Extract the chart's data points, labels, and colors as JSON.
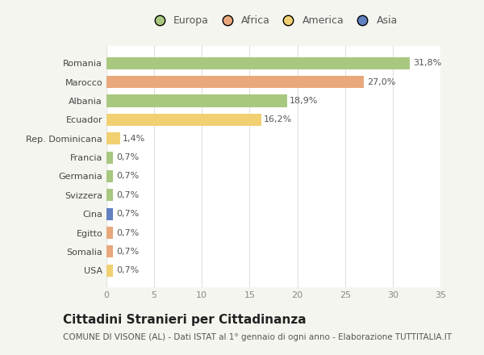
{
  "countries": [
    "Romania",
    "Marocco",
    "Albania",
    "Ecuador",
    "Rep. Dominicana",
    "Francia",
    "Germania",
    "Svizzera",
    "Cina",
    "Egitto",
    "Somalia",
    "USA"
  ],
  "values": [
    31.8,
    27.0,
    18.9,
    16.2,
    1.4,
    0.7,
    0.7,
    0.7,
    0.7,
    0.7,
    0.7,
    0.7
  ],
  "labels": [
    "31,8%",
    "27,0%",
    "18,9%",
    "16,2%",
    "1,4%",
    "0,7%",
    "0,7%",
    "0,7%",
    "0,7%",
    "0,7%",
    "0,7%",
    "0,7%"
  ],
  "categories": [
    "Europa",
    "Africa",
    "America",
    "Asia"
  ],
  "bar_colors": [
    "#a8c880",
    "#e8a87c",
    "#a8c880",
    "#f0d070",
    "#f0d070",
    "#a8c880",
    "#a8c880",
    "#a8c880",
    "#6080c0",
    "#e8a87c",
    "#e8a87c",
    "#f0d070"
  ],
  "legend_colors": [
    "#a8c880",
    "#e8a87c",
    "#f0d070",
    "#6080c0"
  ],
  "xlim": [
    0,
    35
  ],
  "xticks": [
    0,
    5,
    10,
    15,
    20,
    25,
    30,
    35
  ],
  "title": "Cittadini Stranieri per Cittadinanza",
  "subtitle": "COMUNE DI VISONE (AL) - Dati ISTAT al 1° gennaio di ogni anno - Elaborazione TUTTITALIA.IT",
  "bg_color": "#f5f5f0",
  "plot_bg_color": "#ffffff",
  "grid_color": "#e0e0e0",
  "bar_height": 0.65,
  "title_fontsize": 11,
  "subtitle_fontsize": 7.5,
  "label_fontsize": 8,
  "tick_fontsize": 8,
  "legend_fontsize": 9
}
